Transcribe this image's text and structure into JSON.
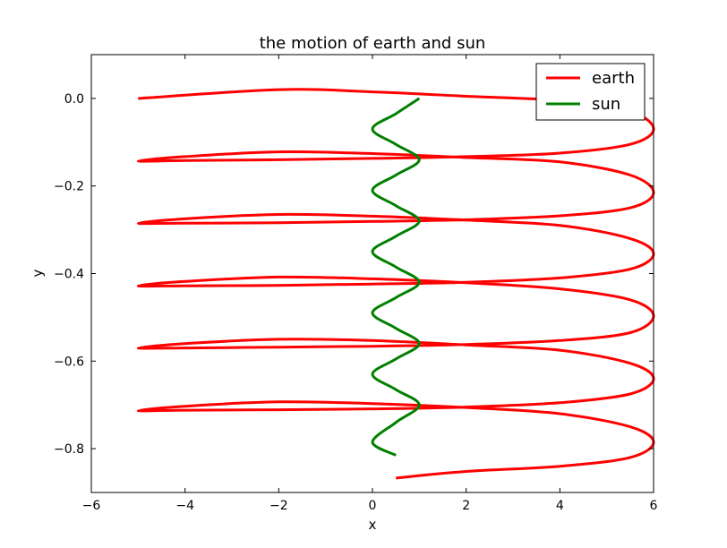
{
  "chart_data": {
    "type": "line",
    "title": "the motion of earth and sun",
    "xlabel": "x",
    "ylabel": "y",
    "xlim": [
      -6,
      6
    ],
    "ylim": [
      -0.9,
      0.1
    ],
    "x_ticks": [
      -6,
      -4,
      -2,
      0,
      2,
      4,
      6
    ],
    "x_tick_labels": [
      "−6",
      "−4",
      "−2",
      "0",
      "2",
      "4",
      "6"
    ],
    "y_ticks": [
      0.0,
      -0.2,
      -0.4,
      -0.6,
      -0.8
    ],
    "y_tick_labels": [
      "0.0",
      "−0.2",
      "−0.4",
      "−0.6",
      "−0.8"
    ],
    "grid": false,
    "legend_position": "top-right",
    "series": [
      {
        "name": "earth",
        "color": "#ff0000",
        "x": [
          -5.0,
          -2.0,
          0.0,
          2.0,
          4.0,
          5.5,
          6.0,
          5.5,
          4.0,
          2.0,
          0.0,
          -2.0,
          -4.0,
          -5.0,
          -4.0,
          -2.0,
          0.0,
          2.0,
          4.0,
          5.5,
          6.0,
          5.5,
          4.0,
          2.0,
          0.0,
          -2.0,
          -4.0,
          -5.0,
          -4.0,
          -2.0,
          0.0,
          2.0,
          4.0,
          5.5,
          6.0,
          5.5,
          4.0,
          2.0,
          0.0,
          -2.0,
          -4.0,
          -5.0,
          -4.0,
          -2.0,
          0.0,
          2.0,
          4.0,
          5.5,
          6.0,
          5.5,
          4.0,
          2.0,
          0.0,
          -2.0,
          -4.0,
          -5.0,
          -4.0,
          -2.0,
          0.0,
          2.0,
          4.0,
          5.5,
          6.0,
          5.5,
          4.0,
          2.0,
          0.0,
          -2.0,
          -4.0,
          -5.0,
          -4.0,
          -2.0,
          0.0,
          2.0,
          4.0,
          5.5,
          6.0,
          5.5,
          4.0,
          2.0,
          0.5
        ],
        "y": [
          0.0,
          0.02,
          0.015,
          0.005,
          -0.005,
          -0.03,
          -0.07,
          -0.105,
          -0.125,
          -0.133,
          -0.137,
          -0.14,
          -0.142,
          -0.143,
          -0.133,
          -0.122,
          -0.126,
          -0.135,
          -0.145,
          -0.175,
          -0.215,
          -0.25,
          -0.268,
          -0.277,
          -0.281,
          -0.284,
          -0.285,
          -0.285,
          -0.275,
          -0.265,
          -0.269,
          -0.278,
          -0.29,
          -0.32,
          -0.355,
          -0.39,
          -0.41,
          -0.42,
          -0.424,
          -0.427,
          -0.428,
          -0.428,
          -0.418,
          -0.408,
          -0.412,
          -0.421,
          -0.435,
          -0.46,
          -0.497,
          -0.535,
          -0.553,
          -0.562,
          -0.566,
          -0.568,
          -0.57,
          -0.57,
          -0.56,
          -0.55,
          -0.553,
          -0.563,
          -0.575,
          -0.605,
          -0.64,
          -0.675,
          -0.695,
          -0.705,
          -0.709,
          -0.711,
          -0.712,
          -0.713,
          -0.703,
          -0.693,
          -0.697,
          -0.706,
          -0.72,
          -0.75,
          -0.785,
          -0.82,
          -0.84,
          -0.852,
          -0.867
        ]
      },
      {
        "name": "sun",
        "color": "#008000",
        "x": [
          1.0,
          0.5,
          0.0,
          0.5,
          1.0,
          0.5,
          0.0,
          0.5,
          1.0,
          0.5,
          0.0,
          0.5,
          1.0,
          0.5,
          0.0,
          0.5,
          1.0,
          0.5,
          0.0,
          0.5,
          1.0,
          0.5,
          0.0,
          0.5
        ],
        "y": [
          0.0,
          -0.035,
          -0.07,
          -0.105,
          -0.14,
          -0.175,
          -0.21,
          -0.245,
          -0.28,
          -0.315,
          -0.35,
          -0.385,
          -0.42,
          -0.455,
          -0.49,
          -0.525,
          -0.56,
          -0.595,
          -0.63,
          -0.665,
          -0.7,
          -0.74,
          -0.785,
          -0.815
        ]
      }
    ]
  }
}
